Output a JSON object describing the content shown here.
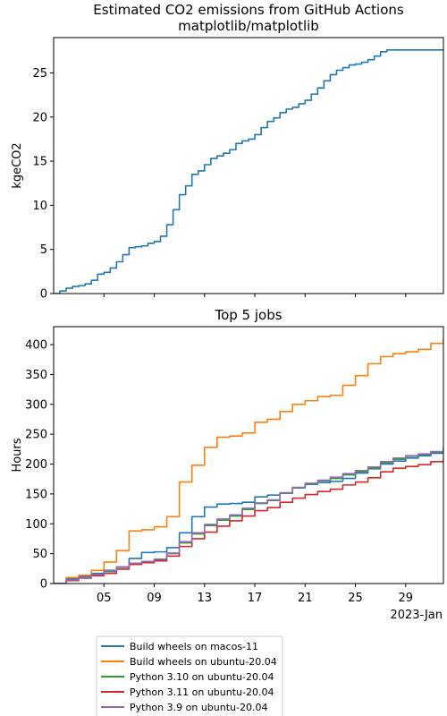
{
  "chart_data": [
    {
      "type": "line",
      "title": "Estimated CO2 emissions from GitHub Actions\nmatplotlib/matplotlib",
      "title_lines": [
        "Estimated CO2 emissions from GitHub Actions",
        "matplotlib/matplotlib"
      ],
      "ylabel": "kgeCO2",
      "xlabel": "",
      "x_unit": "day of January 2023",
      "xlim": [
        1,
        32
      ],
      "ylim": [
        0,
        29
      ],
      "yticks": [
        0,
        5,
        10,
        15,
        20,
        25
      ],
      "x_tick_values": [
        5,
        9,
        13,
        17,
        21,
        25,
        29
      ],
      "x_tick_labels_shown": false,
      "grid": false,
      "series": [
        {
          "color": "#1f77b4",
          "x": [
            1,
            1.5,
            2,
            2.5,
            3,
            3.5,
            4,
            4.5,
            5,
            5.5,
            6,
            6.5,
            7,
            7.5,
            8,
            8.5,
            9,
            9.5,
            10,
            10.5,
            11,
            11.5,
            12,
            12.5,
            13,
            13.5,
            14,
            14.5,
            15,
            15.5,
            16,
            16.5,
            17,
            17.5,
            18,
            18.5,
            19,
            19.5,
            20,
            20.5,
            21,
            21.5,
            22,
            22.5,
            23,
            23.5,
            24,
            24.5,
            25,
            25.5,
            26,
            26.5,
            27,
            27.5,
            28,
            28.5,
            29,
            29.5,
            30,
            30.5,
            31,
            31.5,
            32
          ],
          "values": [
            0.0,
            0.3,
            0.6,
            0.8,
            0.9,
            1.1,
            1.5,
            2.2,
            2.4,
            2.9,
            3.6,
            4.4,
            5.2,
            5.3,
            5.4,
            5.7,
            5.9,
            6.5,
            7.8,
            9.5,
            11.2,
            12.2,
            13.5,
            13.9,
            14.6,
            15.3,
            15.6,
            15.9,
            16.3,
            17.0,
            17.3,
            17.5,
            18.0,
            18.8,
            19.5,
            19.9,
            20.5,
            20.9,
            21.1,
            21.5,
            21.9,
            22.6,
            23.3,
            24.1,
            24.8,
            25.3,
            25.6,
            25.9,
            26.0,
            26.2,
            26.5,
            26.9,
            27.4,
            27.6,
            27.6,
            27.6,
            27.6,
            27.6,
            27.6,
            27.6,
            27.6,
            27.6,
            27.6
          ]
        }
      ]
    },
    {
      "type": "line",
      "title": "Top 5 jobs",
      "ylabel": "Hours",
      "xlabel": "2023-Jan",
      "x_unit": "day of January 2023",
      "xlim": [
        1,
        32
      ],
      "ylim": [
        0,
        430
      ],
      "yticks": [
        0,
        50,
        100,
        150,
        200,
        250,
        300,
        350,
        400
      ],
      "x_tick_values": [
        5,
        9,
        13,
        17,
        21,
        25,
        29
      ],
      "x_tick_labels": [
        "05",
        "09",
        "13",
        "17",
        "21",
        "25",
        "29"
      ],
      "grid": false,
      "legend_placement": "below the axes, centered",
      "series": [
        {
          "name": "Build wheels on macos-11",
          "color": "#1f77b4",
          "x": [
            1,
            2,
            3,
            4,
            5,
            6,
            7,
            8,
            9,
            10,
            11,
            12,
            13,
            14,
            15,
            16,
            17,
            18,
            19,
            20,
            21,
            22,
            23,
            24,
            25,
            26,
            27,
            28,
            29,
            30,
            31,
            32
          ],
          "values": [
            0,
            8,
            12,
            17,
            22,
            28,
            42,
            52,
            53,
            60,
            85,
            112,
            128,
            133,
            134,
            136,
            145,
            148,
            151,
            160,
            166,
            169,
            171,
            176,
            185,
            192,
            200,
            205,
            210,
            214,
            218,
            222
          ]
        },
        {
          "name": "Build wheels on ubuntu-20.04",
          "color": "#ff7f0e",
          "x": [
            1,
            2,
            3,
            4,
            5,
            6,
            7,
            8,
            9,
            10,
            11,
            12,
            13,
            14,
            15,
            16,
            17,
            18,
            19,
            20,
            21,
            22,
            23,
            24,
            25,
            26,
            27,
            28,
            29,
            30,
            31,
            32
          ],
          "values": [
            0,
            10,
            14,
            22,
            36,
            55,
            88,
            90,
            95,
            112,
            170,
            198,
            228,
            245,
            247,
            252,
            270,
            275,
            288,
            300,
            306,
            313,
            315,
            332,
            348,
            368,
            380,
            385,
            388,
            392,
            402,
            410
          ]
        },
        {
          "name": "Python 3.10 on ubuntu-20.04",
          "color": "#2ca02c",
          "x": [
            1,
            2,
            3,
            4,
            5,
            6,
            7,
            8,
            9,
            10,
            11,
            12,
            13,
            14,
            15,
            16,
            17,
            18,
            19,
            20,
            21,
            22,
            23,
            24,
            25,
            26,
            27,
            28,
            29,
            30,
            31,
            32
          ],
          "values": [
            0,
            6,
            10,
            14,
            20,
            27,
            33,
            36,
            40,
            50,
            68,
            83,
            97,
            106,
            113,
            124,
            134,
            139,
            151,
            160,
            167,
            172,
            176,
            182,
            187,
            193,
            202,
            208,
            213,
            216,
            220,
            227
          ]
        },
        {
          "name": "Python 3.11 on ubuntu-20.04",
          "color": "#d62728",
          "x": [
            1,
            2,
            3,
            4,
            5,
            6,
            7,
            8,
            9,
            10,
            11,
            12,
            13,
            14,
            15,
            16,
            17,
            18,
            19,
            20,
            21,
            22,
            23,
            24,
            25,
            26,
            27,
            28,
            29,
            30,
            31,
            32
          ],
          "values": [
            0,
            5,
            9,
            13,
            17,
            24,
            32,
            35,
            38,
            46,
            62,
            75,
            86,
            96,
            105,
            113,
            122,
            127,
            136,
            143,
            149,
            154,
            158,
            165,
            170,
            177,
            187,
            193,
            196,
            199,
            204,
            209
          ]
        },
        {
          "name": "Python 3.9 on ubuntu-20.04",
          "color": "#9467bd",
          "x": [
            1,
            2,
            3,
            4,
            5,
            6,
            7,
            8,
            9,
            10,
            11,
            12,
            13,
            14,
            15,
            16,
            17,
            18,
            19,
            20,
            21,
            22,
            23,
            24,
            25,
            26,
            27,
            28,
            29,
            30,
            31,
            32
          ],
          "values": [
            0,
            6,
            10,
            15,
            21,
            28,
            34,
            37,
            41,
            51,
            70,
            85,
            99,
            108,
            115,
            126,
            135,
            140,
            152,
            161,
            168,
            173,
            178,
            184,
            189,
            195,
            204,
            210,
            214,
            217,
            221,
            228
          ]
        }
      ]
    }
  ]
}
